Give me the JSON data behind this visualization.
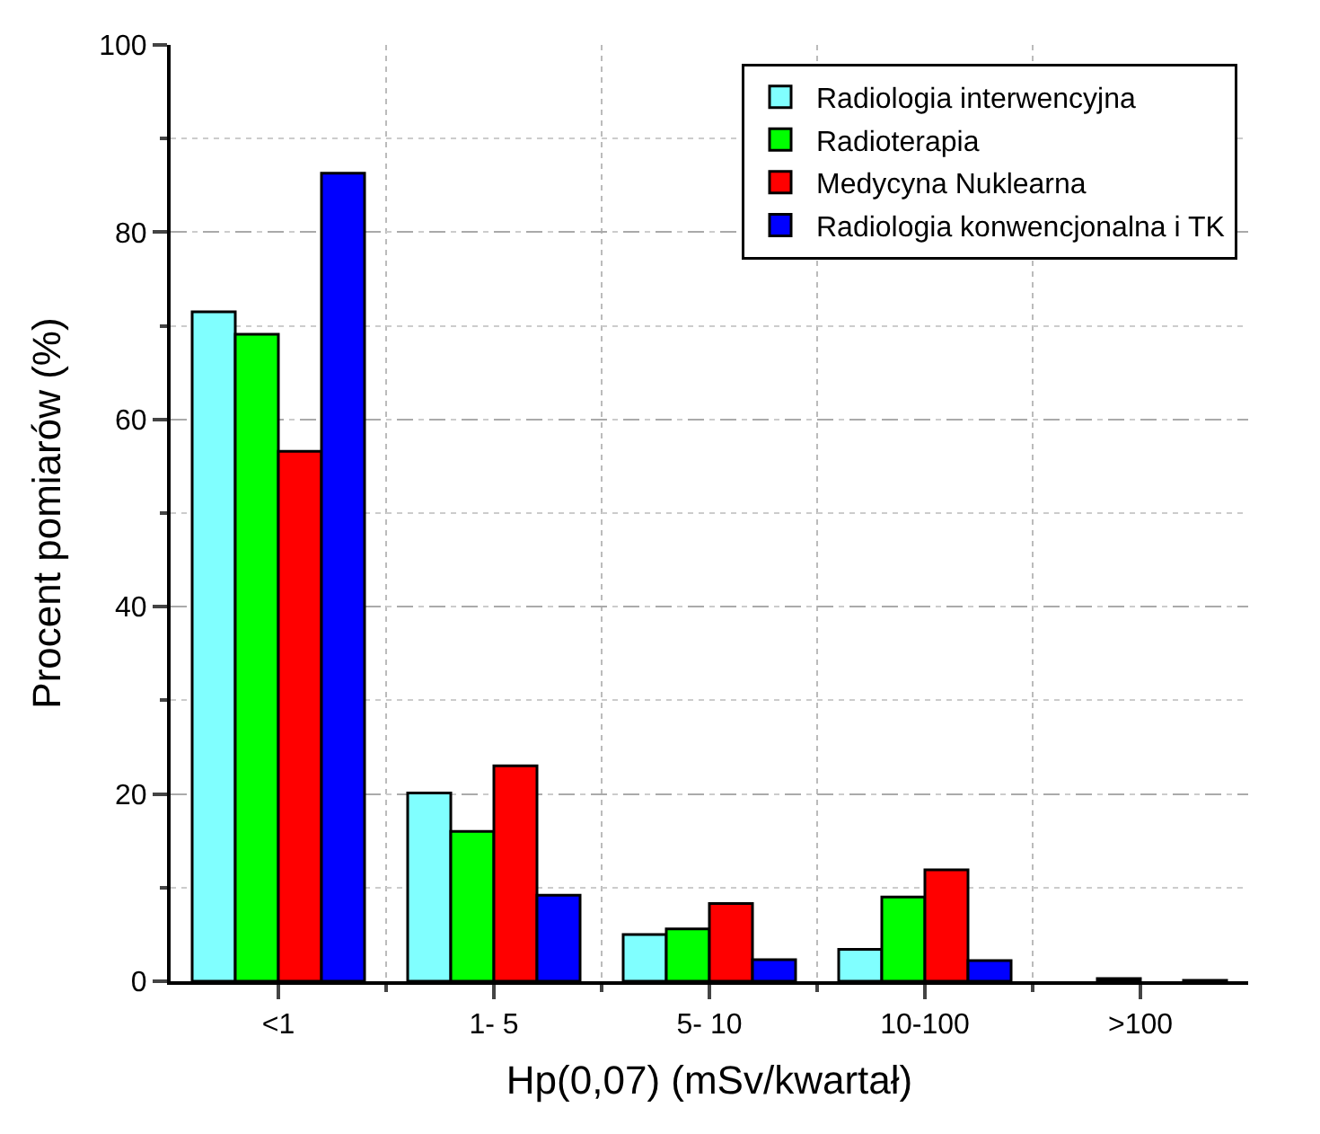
{
  "chart_data": {
    "type": "bar",
    "xlabel": "Hp(0,07) (mSv/kwartał)",
    "ylabel": "Procent pomiarów (%)",
    "categories": [
      "<1",
      "1- 5",
      "5- 10",
      "10-100",
      ">100"
    ],
    "series": [
      {
        "name": "Radiologia interwencyjna",
        "color": "#80ffff",
        "values": [
          71.5,
          20.1,
          5.0,
          3.4,
          0
        ]
      },
      {
        "name": "Radioterapia",
        "color": "#00ff00",
        "values": [
          69.1,
          16.0,
          5.6,
          9.0,
          0.3
        ]
      },
      {
        "name": "Medycyna Nuklearna",
        "color": "#ff0000",
        "values": [
          56.6,
          23.0,
          8.3,
          11.9,
          0
        ]
      },
      {
        "name": "Radiologia konwencjonalna i TK",
        "color": "#0000ff",
        "values": [
          86.3,
          9.2,
          2.3,
          2.2,
          0.1
        ]
      }
    ],
    "ylim": [
      0,
      100
    ],
    "yticks": [
      0,
      20,
      40,
      60,
      80,
      100
    ],
    "grid": true,
    "legend": "top right"
  }
}
